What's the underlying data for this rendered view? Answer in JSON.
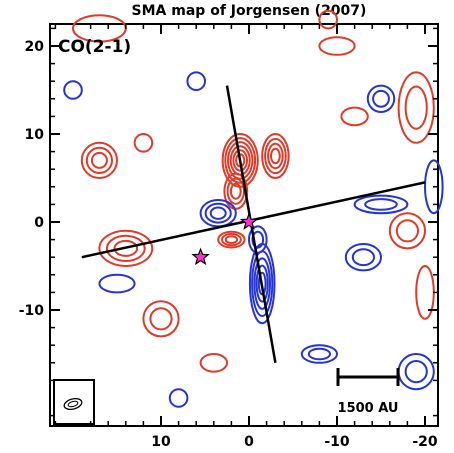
{
  "chart_data": {
    "type": "contour",
    "title": "SMA map of Jorgensen (2007)",
    "panel_label": "CO(2-1)",
    "scale_bar_label": "1500 AU",
    "xlabel": "",
    "ylabel": "",
    "x_ticks": [
      {
        "value": 10,
        "label": "10"
      },
      {
        "value": 0,
        "label": "0"
      },
      {
        "value": -10,
        "label": "-10"
      },
      {
        "value": -20,
        "label": "-20"
      }
    ],
    "y_ticks": [
      {
        "value": 20,
        "label": "20"
      },
      {
        "value": 10,
        "label": "10"
      },
      {
        "value": 0,
        "label": "0"
      },
      {
        "value": -10,
        "label": "-10"
      }
    ],
    "xlim": [
      20,
      -23
    ],
    "ylim": [
      -23,
      23
    ],
    "axis_lines": [
      {
        "from": [
          -3,
          -16
        ],
        "to": [
          2.5,
          15.5
        ],
        "color": "#000000"
      },
      {
        "from": [
          -20,
          4.5
        ],
        "to": [
          19,
          -4
        ],
        "color": "#000000"
      }
    ],
    "markers": [
      {
        "x": 0,
        "y": 0,
        "symbol": "star",
        "color": "#ff2fd1"
      },
      {
        "x": 5.5,
        "y": -4,
        "symbol": "star",
        "color": "#ff2fd1"
      }
    ],
    "series": [
      {
        "color": "#e03a28",
        "contours": [
          {
            "x": 1,
            "y": 7,
            "rx": 2,
            "ry": 3,
            "levels": 6
          },
          {
            "x": -3,
            "y": 7.5,
            "rx": 1.5,
            "ry": 2.5,
            "levels": 4
          },
          {
            "x": 1.5,
            "y": 3.5,
            "rx": 1.3,
            "ry": 2,
            "levels": 3
          },
          {
            "x": 2,
            "y": -2,
            "rx": 1.5,
            "ry": 0.9,
            "levels": 3
          },
          {
            "x": 17,
            "y": 7,
            "rx": 2,
            "ry": 2,
            "levels": 3
          },
          {
            "x": 12,
            "y": 9,
            "rx": 1,
            "ry": 1,
            "levels": 1
          },
          {
            "x": 14,
            "y": -3,
            "rx": 3,
            "ry": 2,
            "levels": 3
          },
          {
            "x": 10,
            "y": -11,
            "rx": 2,
            "ry": 2,
            "levels": 2
          },
          {
            "x": -19,
            "y": 13,
            "rx": 2,
            "ry": 4,
            "levels": 2
          },
          {
            "x": -10,
            "y": 20,
            "rx": 2,
            "ry": 1,
            "levels": 1
          },
          {
            "x": -12,
            "y": 12,
            "rx": 1.5,
            "ry": 1,
            "levels": 1
          },
          {
            "x": -18,
            "y": -1,
            "rx": 2,
            "ry": 2,
            "levels": 2
          },
          {
            "x": -20,
            "y": -8,
            "rx": 1,
            "ry": 3,
            "levels": 1
          },
          {
            "x": 17,
            "y": 22,
            "rx": 3,
            "ry": 1.5,
            "levels": 1
          },
          {
            "x": -9,
            "y": 23,
            "rx": 1,
            "ry": 1,
            "levels": 1
          },
          {
            "x": 4,
            "y": -16,
            "rx": 1.5,
            "ry": 1,
            "levels": 1
          }
        ]
      },
      {
        "color": "#2633d6",
        "contours": [
          {
            "x": -1.5,
            "y": -7,
            "rx": 1.4,
            "ry": 4.5,
            "levels": 5
          },
          {
            "x": -1,
            "y": -2,
            "rx": 1,
            "ry": 1.5,
            "levels": 2
          },
          {
            "x": 3.5,
            "y": 1,
            "rx": 2,
            "ry": 1.5,
            "levels": 3
          },
          {
            "x": -15,
            "y": 2,
            "rx": 3,
            "ry": 1,
            "levels": 2
          },
          {
            "x": -13,
            "y": -4,
            "rx": 2,
            "ry": 1.5,
            "levels": 2
          },
          {
            "x": -15,
            "y": 14,
            "rx": 1.5,
            "ry": 1.5,
            "levels": 2
          },
          {
            "x": -19,
            "y": -17,
            "rx": 2,
            "ry": 2,
            "levels": 2
          },
          {
            "x": -8,
            "y": -15,
            "rx": 2,
            "ry": 1,
            "levels": 2
          },
          {
            "x": 20,
            "y": 15,
            "rx": 1,
            "ry": 1,
            "levels": 1
          },
          {
            "x": 15,
            "y": -7,
            "rx": 2,
            "ry": 1,
            "levels": 1
          },
          {
            "x": 8,
            "y": -20,
            "rx": 1,
            "ry": 1,
            "levels": 1
          },
          {
            "x": -21,
            "y": 4,
            "rx": 1,
            "ry": 3,
            "levels": 1
          },
          {
            "x": 6,
            "y": 16,
            "rx": 1,
            "ry": 1,
            "levels": 1
          }
        ]
      }
    ]
  }
}
